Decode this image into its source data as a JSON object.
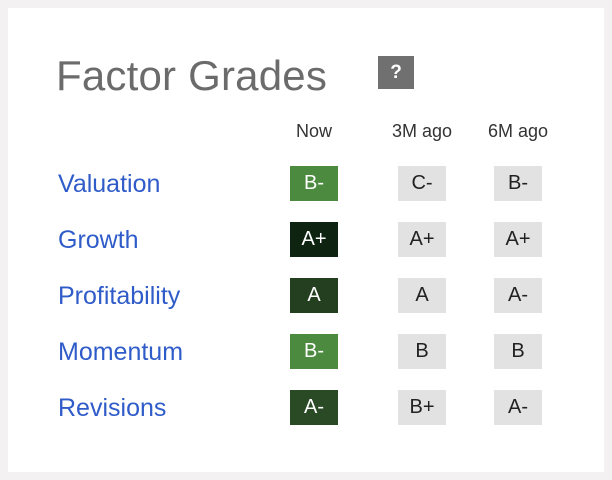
{
  "title": "Factor Grades",
  "help_label": "?",
  "columns": [
    "Now",
    "3M ago",
    "6M ago"
  ],
  "rows": [
    {
      "label": "Valuation",
      "now": "B-",
      "m3": "C-",
      "m6": "B-",
      "now_color": "#4b8a3f"
    },
    {
      "label": "Growth",
      "now": "A+",
      "m3": "A+",
      "m6": "A+",
      "now_color": "#0e2410"
    },
    {
      "label": "Profitability",
      "now": "A",
      "m3": "A",
      "m6": "A-",
      "now_color": "#233f1f"
    },
    {
      "label": "Momentum",
      "now": "B-",
      "m3": "B",
      "m6": "B",
      "now_color": "#4b8a3f"
    },
    {
      "label": "Revisions",
      "now": "A-",
      "m3": "B+",
      "m6": "A-",
      "now_color": "#294a25"
    }
  ],
  "colors": {
    "label_link": "#2f5cc9",
    "past_grade_bg": "#e2e2e2",
    "help_bg": "#707070",
    "title": "#6b6b6b"
  }
}
